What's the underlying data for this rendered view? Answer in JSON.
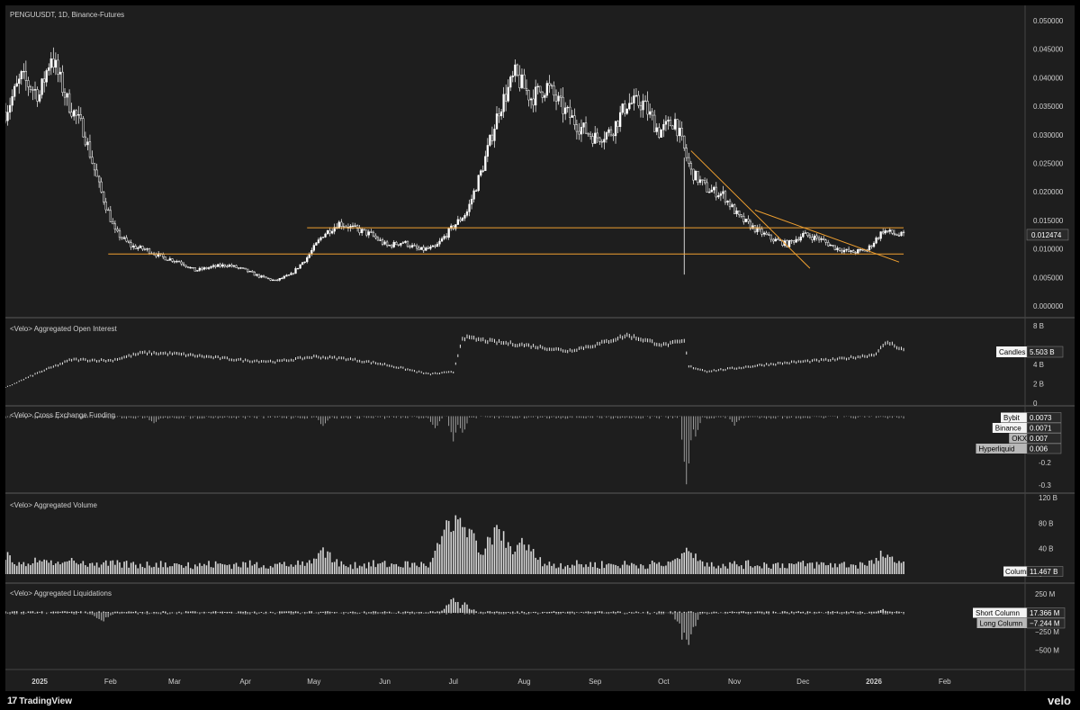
{
  "app": {
    "symbol_label": "PENGUUSDT, 1D, Binance-Futures",
    "brand_left": "TradingView",
    "brand_left_mark": "17",
    "brand_right": "velo"
  },
  "time_axis": [
    "2025",
    "Feb",
    "Mar",
    "Apr",
    "May",
    "Jun",
    "Jul",
    "Aug",
    "Sep",
    "Oct",
    "Nov",
    "Dec",
    "2026",
    "Feb"
  ],
  "colors": {
    "background": "#1e1e1e",
    "candle": "#ffffff",
    "trendline": "#f0a030",
    "axis_text": "#cfcfcf",
    "pane_divider": "#5a5a5a"
  },
  "chart_data": [
    {
      "type": "candlestick",
      "title": "PENGUUSDT, 1D, Binance-Futures",
      "y_ticks": [
        "0.050000",
        "0.045000",
        "0.040000",
        "0.035000",
        "0.030000",
        "0.025000",
        "0.020000",
        "0.015000",
        "0.010000",
        "0.005000",
        "0.000000"
      ],
      "ylim": [
        0,
        0.05
      ],
      "last_value_label": "0.012474",
      "last_value": 0.012474,
      "close_series": [
        {
          "date": "2024-12-17",
          "value": 0.034
        },
        {
          "date": "2024-12-24",
          "value": 0.04
        },
        {
          "date": "2025-01-01",
          "value": 0.037
        },
        {
          "date": "2025-01-06",
          "value": 0.044
        },
        {
          "date": "2025-01-13",
          "value": 0.036
        },
        {
          "date": "2025-01-20",
          "value": 0.031
        },
        {
          "date": "2025-01-27",
          "value": 0.021
        },
        {
          "date": "2025-02-03",
          "value": 0.013
        },
        {
          "date": "2025-02-10",
          "value": 0.0105
        },
        {
          "date": "2025-02-17",
          "value": 0.0098
        },
        {
          "date": "2025-02-24",
          "value": 0.0085
        },
        {
          "date": "2025-03-03",
          "value": 0.0078
        },
        {
          "date": "2025-03-10",
          "value": 0.0062
        },
        {
          "date": "2025-03-17",
          "value": 0.0068
        },
        {
          "date": "2025-03-24",
          "value": 0.0072
        },
        {
          "date": "2025-03-31",
          "value": 0.0064
        },
        {
          "date": "2025-04-07",
          "value": 0.0052
        },
        {
          "date": "2025-04-14",
          "value": 0.0044
        },
        {
          "date": "2025-04-21",
          "value": 0.0055
        },
        {
          "date": "2025-04-28",
          "value": 0.0085
        },
        {
          "date": "2025-05-05",
          "value": 0.0125
        },
        {
          "date": "2025-05-12",
          "value": 0.0145
        },
        {
          "date": "2025-05-19",
          "value": 0.0135
        },
        {
          "date": "2025-05-26",
          "value": 0.0125
        },
        {
          "date": "2025-06-02",
          "value": 0.0105
        },
        {
          "date": "2025-06-09",
          "value": 0.0112
        },
        {
          "date": "2025-06-16",
          "value": 0.0098
        },
        {
          "date": "2025-06-23",
          "value": 0.0102
        },
        {
          "date": "2025-06-30",
          "value": 0.0135
        },
        {
          "date": "2025-07-07",
          "value": 0.0165
        },
        {
          "date": "2025-07-14",
          "value": 0.0245
        },
        {
          "date": "2025-07-21",
          "value": 0.0345
        },
        {
          "date": "2025-07-28",
          "value": 0.0405
        },
        {
          "date": "2025-08-04",
          "value": 0.0365
        },
        {
          "date": "2025-08-11",
          "value": 0.0385
        },
        {
          "date": "2025-08-18",
          "value": 0.0345
        },
        {
          "date": "2025-08-25",
          "value": 0.0315
        },
        {
          "date": "2025-09-01",
          "value": 0.0295
        },
        {
          "date": "2025-09-08",
          "value": 0.0305
        },
        {
          "date": "2025-09-15",
          "value": 0.0355
        },
        {
          "date": "2025-09-22",
          "value": 0.0355
        },
        {
          "date": "2025-09-29",
          "value": 0.0305
        },
        {
          "date": "2025-10-06",
          "value": 0.0325
        },
        {
          "date": "2025-10-13",
          "value": 0.0235
        },
        {
          "date": "2025-10-20",
          "value": 0.0205
        },
        {
          "date": "2025-10-27",
          "value": 0.0195
        },
        {
          "date": "2025-11-03",
          "value": 0.0155
        },
        {
          "date": "2025-11-10",
          "value": 0.0135
        },
        {
          "date": "2025-11-17",
          "value": 0.0118
        },
        {
          "date": "2025-11-24",
          "value": 0.0108
        },
        {
          "date": "2025-12-01",
          "value": 0.0125
        },
        {
          "date": "2025-12-08",
          "value": 0.0118
        },
        {
          "date": "2025-12-15",
          "value": 0.0102
        },
        {
          "date": "2025-12-22",
          "value": 0.0094
        },
        {
          "date": "2025-12-29",
          "value": 0.0098
        },
        {
          "date": "2026-01-05",
          "value": 0.0132
        },
        {
          "date": "2026-01-12",
          "value": 0.0124
        }
      ],
      "annotations": [
        {
          "kind": "horizontal",
          "value": 0.0137,
          "from": "2025-04-28",
          "to": "2026-01-14"
        },
        {
          "kind": "horizontal",
          "value": 0.0091,
          "from": "2025-01-31",
          "to": "2026-01-14"
        },
        {
          "kind": "trendline",
          "from": {
            "date": "2025-10-13",
            "value": 0.0272
          },
          "to": {
            "date": "2025-12-04",
            "value": 0.0066
          }
        },
        {
          "kind": "trendline",
          "from": {
            "date": "2025-11-10",
            "value": 0.0168
          },
          "to": {
            "date": "2026-01-12",
            "value": 0.0077
          }
        }
      ]
    },
    {
      "type": "line",
      "title": "<Velo> Aggregated Open Interest",
      "y_ticks": [
        "8 B",
        "6 B",
        "4 B",
        "2 B",
        "0"
      ],
      "ylim": [
        0,
        8
      ],
      "legend": [
        {
          "name": "Candles",
          "value": "5.503 B"
        }
      ],
      "series": [
        {
          "date": "2024-12-17",
          "value": 1.6
        },
        {
          "date": "2025-01-01",
          "value": 3.2
        },
        {
          "date": "2025-01-15",
          "value": 4.5
        },
        {
          "date": "2025-02-01",
          "value": 4.4
        },
        {
          "date": "2025-02-15",
          "value": 5.2
        },
        {
          "date": "2025-03-01",
          "value": 5.1
        },
        {
          "date": "2025-03-15",
          "value": 4.8
        },
        {
          "date": "2025-04-01",
          "value": 4.4
        },
        {
          "date": "2025-04-15",
          "value": 4.3
        },
        {
          "date": "2025-05-01",
          "value": 4.8
        },
        {
          "date": "2025-05-15",
          "value": 4.6
        },
        {
          "date": "2025-06-01",
          "value": 4.0
        },
        {
          "date": "2025-06-20",
          "value": 3.0
        },
        {
          "date": "2025-07-01",
          "value": 3.2
        },
        {
          "date": "2025-07-05",
          "value": 6.8
        },
        {
          "date": "2025-07-20",
          "value": 6.3
        },
        {
          "date": "2025-08-01",
          "value": 6.0
        },
        {
          "date": "2025-08-20",
          "value": 5.4
        },
        {
          "date": "2025-09-01",
          "value": 6.0
        },
        {
          "date": "2025-09-15",
          "value": 7.0
        },
        {
          "date": "2025-10-01",
          "value": 6.0
        },
        {
          "date": "2025-10-10",
          "value": 6.4
        },
        {
          "date": "2025-10-12",
          "value": 3.8
        },
        {
          "date": "2025-10-20",
          "value": 3.3
        },
        {
          "date": "2025-11-01",
          "value": 3.6
        },
        {
          "date": "2025-11-15",
          "value": 4.0
        },
        {
          "date": "2025-12-01",
          "value": 4.3
        },
        {
          "date": "2025-12-15",
          "value": 4.5
        },
        {
          "date": "2026-01-01",
          "value": 5.0
        },
        {
          "date": "2026-01-07",
          "value": 6.3
        },
        {
          "date": "2026-01-14",
          "value": 5.5
        }
      ]
    },
    {
      "type": "line",
      "title": "<Velo> Cross Exchange Funding",
      "y_ticks": [
        "-0.2",
        "-0.3"
      ],
      "ylim": [
        -0.32,
        0.03
      ],
      "legend": [
        {
          "name": "Bybit",
          "value": "0.0073"
        },
        {
          "name": "Binance",
          "value": "0.0071"
        },
        {
          "name": "OKX",
          "value": "0.007"
        },
        {
          "name": "Hyperliquid",
          "value": "0.006"
        }
      ],
      "dips": [
        {
          "date": "2025-02-20",
          "value": -0.02
        },
        {
          "date": "2025-05-05",
          "value": -0.04
        },
        {
          "date": "2025-06-23",
          "value": -0.05
        },
        {
          "date": "2025-07-01",
          "value": -0.1
        },
        {
          "date": "2025-07-05",
          "value": -0.07
        },
        {
          "date": "2025-10-11",
          "value": -0.3
        },
        {
          "date": "2025-10-15",
          "value": -0.08
        },
        {
          "date": "2025-11-01",
          "value": -0.03
        }
      ]
    },
    {
      "type": "bar",
      "title": "<Velo> Aggregated Volume",
      "y_ticks": [
        "120 B",
        "80 B",
        "40 B",
        "0"
      ],
      "ylim": [
        0,
        120
      ],
      "legend": [
        {
          "name": "Column",
          "value": "11.467 B"
        }
      ],
      "spikes": [
        {
          "date": "2024-12-17",
          "value": 35
        },
        {
          "date": "2025-01-01",
          "value": 30
        },
        {
          "date": "2025-01-15",
          "value": 25
        },
        {
          "date": "2025-03-01",
          "value": 15
        },
        {
          "date": "2025-05-05",
          "value": 45
        },
        {
          "date": "2025-07-01",
          "value": 110
        },
        {
          "date": "2025-07-06",
          "value": 90
        },
        {
          "date": "2025-07-20",
          "value": 85
        },
        {
          "date": "2025-08-01",
          "value": 60
        },
        {
          "date": "2025-10-11",
          "value": 50
        },
        {
          "date": "2026-01-05",
          "value": 40
        }
      ]
    },
    {
      "type": "bar",
      "title": "<Velo> Aggregated Liquidations",
      "y_ticks": [
        "250 M",
        "0",
        "−250 M",
        "−500 M"
      ],
      "ylim": [
        -600,
        300
      ],
      "legend": [
        {
          "name": "Short Column",
          "value": "17.366 M"
        },
        {
          "name": "Long Column",
          "value": "−7.244 M"
        }
      ],
      "spikes": [
        {
          "date": "2025-01-28",
          "value": -150
        },
        {
          "date": "2025-07-01",
          "value": 230
        },
        {
          "date": "2025-07-06",
          "value": 150
        },
        {
          "date": "2025-10-11",
          "value": -560
        },
        {
          "date": "2026-01-05",
          "value": 50
        }
      ]
    }
  ]
}
